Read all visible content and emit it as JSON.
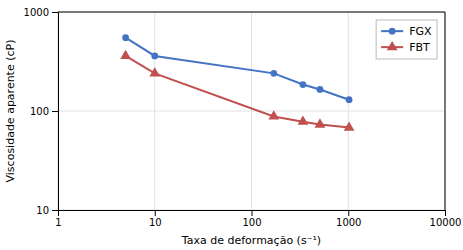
{
  "chart_data": {
    "type": "line",
    "x": [
      5,
      10,
      170,
      340,
      510,
      1020
    ],
    "series": [
      {
        "name": "FGX",
        "color": "#4472C4",
        "marker": "circle",
        "values": [
          550,
          360,
          240,
          185,
          165,
          130
        ]
      },
      {
        "name": "FBT",
        "color": "#C0504D",
        "marker": "triangle",
        "values": [
          360,
          240,
          88,
          78,
          73,
          68
        ]
      }
    ],
    "xlabel": "Taxa de deformação (s⁻¹)",
    "ylabel": "Viscosidade aparente (cP)",
    "log": true,
    "xlim": [
      1,
      10000
    ],
    "ylim": [
      10,
      1000
    ],
    "xticks": [
      1,
      10,
      100,
      1000,
      10000
    ],
    "yticks": [
      10,
      100,
      1000
    ],
    "grid": true,
    "legend": "upper right"
  }
}
